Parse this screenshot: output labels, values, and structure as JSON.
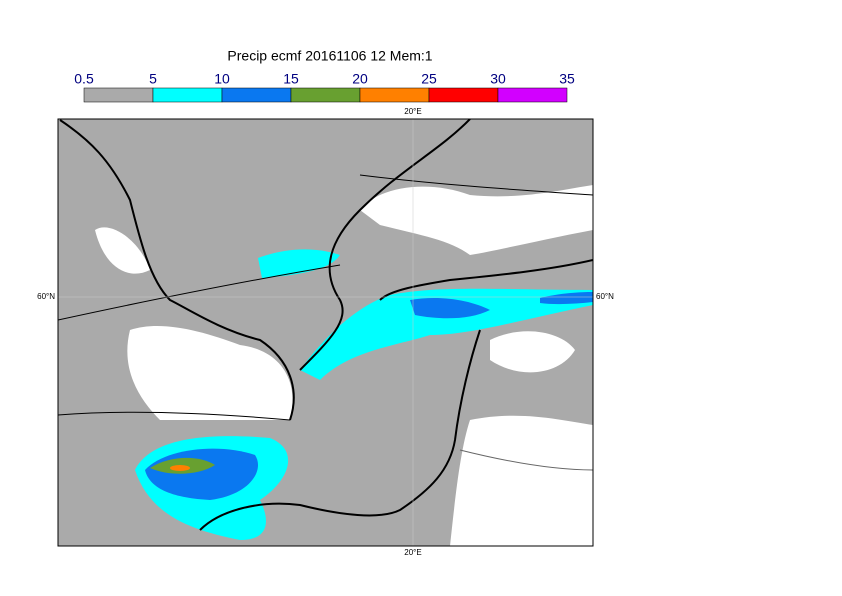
{
  "title": "Precip ecmf 20161106 12 Mem:1",
  "legend": {
    "levels": [
      0.5,
      5,
      10,
      15,
      20,
      25,
      30,
      35
    ],
    "colors": [
      "#aaaaaa",
      "#00ffff",
      "#0a78f0",
      "#68a030",
      "#ff8000",
      "#ff0000",
      "#d200ff"
    ]
  },
  "map": {
    "top_label": "20°E",
    "bottom_label": "20°E",
    "left_label": "60°N",
    "right_label": "60°N"
  }
}
